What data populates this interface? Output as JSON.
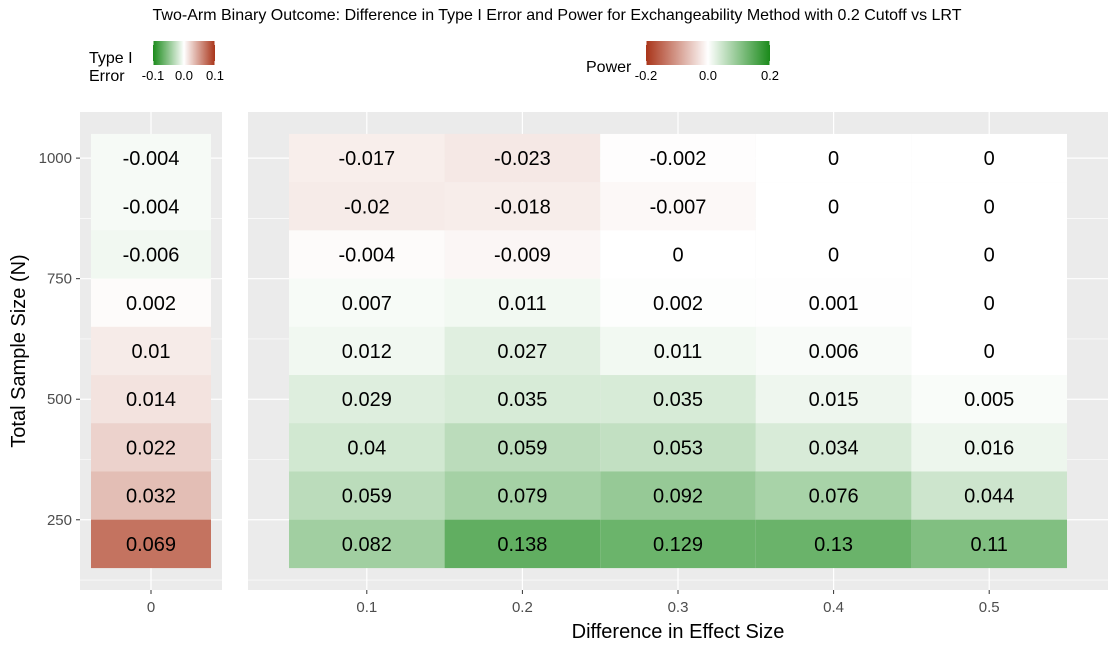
{
  "chart_data": {
    "type": "heatmap",
    "title": "Two-Arm Binary Outcome: Difference in Type I Error and Power for Exchangeability Method with 0.2 Cutoff vs LRT",
    "xlabel": "Difference in Effect Size",
    "ylabel": "Total Sample Size (N)",
    "y_values": [
      200,
      300,
      400,
      500,
      600,
      700,
      800,
      900,
      1000
    ],
    "y_ticks": [
      250,
      500,
      750,
      1000
    ],
    "y_tick_labels": [
      "250",
      "500",
      "750",
      "1000"
    ],
    "panels": [
      {
        "name": "type1",
        "x_categories": [
          "0"
        ],
        "cells": [
          {
            "x": "0",
            "y": 1000,
            "value": -0.004,
            "label": "-0.004"
          },
          {
            "x": "0",
            "y": 900,
            "value": -0.004,
            "label": "-0.004"
          },
          {
            "x": "0",
            "y": 800,
            "value": -0.006,
            "label": "-0.006"
          },
          {
            "x": "0",
            "y": 700,
            "value": 0.002,
            "label": "0.002"
          },
          {
            "x": "0",
            "y": 600,
            "value": 0.01,
            "label": "0.01"
          },
          {
            "x": "0",
            "y": 500,
            "value": 0.014,
            "label": "0.014"
          },
          {
            "x": "0",
            "y": 400,
            "value": 0.022,
            "label": "0.022"
          },
          {
            "x": "0",
            "y": 300,
            "value": 0.032,
            "label": "0.032"
          },
          {
            "x": "0",
            "y": 200,
            "value": 0.069,
            "label": "0.069"
          }
        ]
      },
      {
        "name": "power",
        "x_categories": [
          "0.1",
          "0.2",
          "0.3",
          "0.4",
          "0.5"
        ],
        "cells": [
          {
            "x": "0.1",
            "y": 1000,
            "value": -0.017,
            "label": "-0.017"
          },
          {
            "x": "0.2",
            "y": 1000,
            "value": -0.023,
            "label": "-0.023"
          },
          {
            "x": "0.3",
            "y": 1000,
            "value": -0.002,
            "label": "-0.002"
          },
          {
            "x": "0.4",
            "y": 1000,
            "value": 0,
            "label": "0"
          },
          {
            "x": "0.5",
            "y": 1000,
            "value": 0,
            "label": "0"
          },
          {
            "x": "0.1",
            "y": 900,
            "value": -0.02,
            "label": "-0.02"
          },
          {
            "x": "0.2",
            "y": 900,
            "value": -0.018,
            "label": "-0.018"
          },
          {
            "x": "0.3",
            "y": 900,
            "value": -0.007,
            "label": "-0.007"
          },
          {
            "x": "0.4",
            "y": 900,
            "value": 0,
            "label": "0"
          },
          {
            "x": "0.5",
            "y": 900,
            "value": 0,
            "label": "0"
          },
          {
            "x": "0.1",
            "y": 800,
            "value": -0.004,
            "label": "-0.004"
          },
          {
            "x": "0.2",
            "y": 800,
            "value": -0.009,
            "label": "-0.009"
          },
          {
            "x": "0.3",
            "y": 800,
            "value": 0,
            "label": "0"
          },
          {
            "x": "0.4",
            "y": 800,
            "value": 0,
            "label": "0"
          },
          {
            "x": "0.5",
            "y": 800,
            "value": 0,
            "label": "0"
          },
          {
            "x": "0.1",
            "y": 700,
            "value": 0.007,
            "label": "0.007"
          },
          {
            "x": "0.2",
            "y": 700,
            "value": 0.011,
            "label": "0.011"
          },
          {
            "x": "0.3",
            "y": 700,
            "value": 0.002,
            "label": "0.002"
          },
          {
            "x": "0.4",
            "y": 700,
            "value": 0.001,
            "label": "0.001"
          },
          {
            "x": "0.5",
            "y": 700,
            "value": 0,
            "label": "0"
          },
          {
            "x": "0.1",
            "y": 600,
            "value": 0.012,
            "label": "0.012"
          },
          {
            "x": "0.2",
            "y": 600,
            "value": 0.027,
            "label": "0.027"
          },
          {
            "x": "0.3",
            "y": 600,
            "value": 0.011,
            "label": "0.011"
          },
          {
            "x": "0.4",
            "y": 600,
            "value": 0.006,
            "label": "0.006"
          },
          {
            "x": "0.5",
            "y": 600,
            "value": 0,
            "label": "0"
          },
          {
            "x": "0.1",
            "y": 500,
            "value": 0.029,
            "label": "0.029"
          },
          {
            "x": "0.2",
            "y": 500,
            "value": 0.035,
            "label": "0.035"
          },
          {
            "x": "0.3",
            "y": 500,
            "value": 0.035,
            "label": "0.035"
          },
          {
            "x": "0.4",
            "y": 500,
            "value": 0.015,
            "label": "0.015"
          },
          {
            "x": "0.5",
            "y": 500,
            "value": 0.005,
            "label": "0.005"
          },
          {
            "x": "0.1",
            "y": 400,
            "value": 0.04,
            "label": "0.04"
          },
          {
            "x": "0.2",
            "y": 400,
            "value": 0.059,
            "label": "0.059"
          },
          {
            "x": "0.3",
            "y": 400,
            "value": 0.053,
            "label": "0.053"
          },
          {
            "x": "0.4",
            "y": 400,
            "value": 0.034,
            "label": "0.034"
          },
          {
            "x": "0.5",
            "y": 400,
            "value": 0.016,
            "label": "0.016"
          },
          {
            "x": "0.1",
            "y": 300,
            "value": 0.059,
            "label": "0.059"
          },
          {
            "x": "0.2",
            "y": 300,
            "value": 0.079,
            "label": "0.079"
          },
          {
            "x": "0.3",
            "y": 300,
            "value": 0.092,
            "label": "0.092"
          },
          {
            "x": "0.4",
            "y": 300,
            "value": 0.076,
            "label": "0.076"
          },
          {
            "x": "0.5",
            "y": 300,
            "value": 0.044,
            "label": "0.044"
          },
          {
            "x": "0.1",
            "y": 200,
            "value": 0.082,
            "label": "0.082"
          },
          {
            "x": "0.2",
            "y": 200,
            "value": 0.138,
            "label": "0.138"
          },
          {
            "x": "0.3",
            "y": 200,
            "value": 0.129,
            "label": "0.129"
          },
          {
            "x": "0.4",
            "y": 200,
            "value": 0.13,
            "label": "0.13"
          },
          {
            "x": "0.5",
            "y": 200,
            "value": 0.11,
            "label": "0.11"
          }
        ]
      }
    ],
    "legends": [
      {
        "name": "type1",
        "title_lines": [
          "Type I",
          "Error"
        ],
        "range": [
          -0.1,
          0.1
        ],
        "ticks": [
          -0.1,
          0,
          0.1
        ],
        "tick_labels": [
          "-0.1",
          "0.0",
          "0.1"
        ],
        "low_color": "#1a8a1a",
        "mid_color": "#ffffff",
        "high_color": "#a93419"
      },
      {
        "name": "power",
        "title_lines": [
          "Power"
        ],
        "range": [
          -0.2,
          0.2
        ],
        "ticks": [
          -0.2,
          0,
          0.2
        ],
        "tick_labels": [
          "-0.2",
          "0.0",
          "0.2"
        ],
        "low_color": "#a93419",
        "mid_color": "#ffffff",
        "high_color": "#1a8a1a"
      }
    ],
    "panel_background": "#ebebeb",
    "grid_color": "#ffffff",
    "grid": true
  }
}
